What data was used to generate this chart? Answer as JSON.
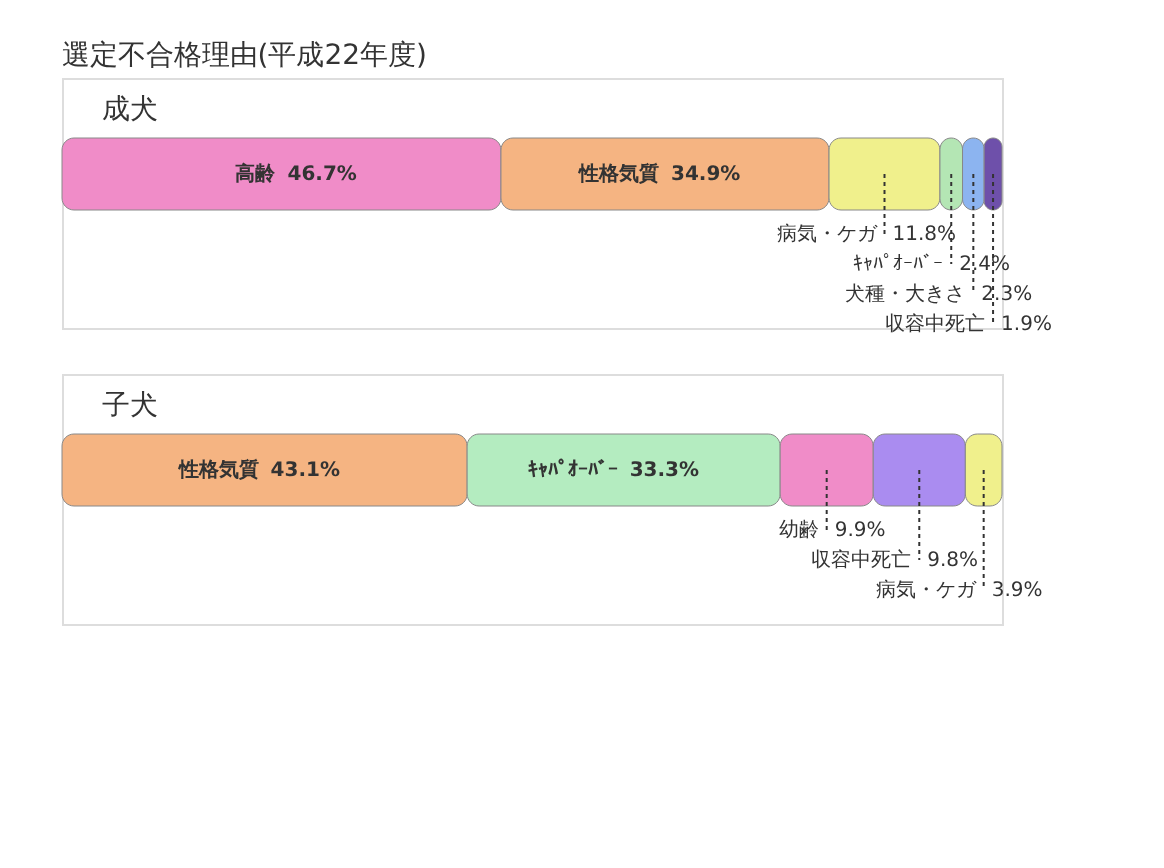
{
  "chart_data": [
    {
      "type": "bar",
      "orientation": "horizontal",
      "stacked": true,
      "title": "選定不合格理由(平成22年度)",
      "categories": [
        "成犬"
      ],
      "series": [
        {
          "name": "高齢",
          "color": "#f08cc8",
          "values": [
            46.7
          ],
          "value_labels": [
            "46.7%"
          ]
        },
        {
          "name": "性格気質",
          "color": "#f5b482",
          "values": [
            34.9
          ],
          "value_labels": [
            "34.9%"
          ]
        },
        {
          "name": "病気・ケガ",
          "color": "#f0f08c",
          "values": [
            11.8
          ],
          "value_labels": [
            "11.8%"
          ]
        },
        {
          "name": "ｷｬﾊﾟｵｰﾊﾞｰ",
          "color": "#b4e6b4",
          "values": [
            2.4
          ],
          "value_labels": [
            "2.4%"
          ]
        },
        {
          "name": "犬種・大きさ",
          "color": "#8cb4f0",
          "values": [
            2.3
          ],
          "value_labels": [
            "2.3%"
          ]
        },
        {
          "name": "収容中死亡",
          "color": "#6e50aa",
          "values": [
            1.9
          ],
          "value_labels": [
            "1.9%"
          ]
        }
      ]
    },
    {
      "type": "bar",
      "orientation": "horizontal",
      "stacked": true,
      "categories": [
        "子犬"
      ],
      "series": [
        {
          "name": "性格気質",
          "color": "#f5b482",
          "values": [
            43.1
          ],
          "value_labels": [
            "43.1%"
          ]
        },
        {
          "name": "ｷｬﾊﾟｵｰﾊﾞｰ",
          "color": "#b4ecc0",
          "values": [
            33.3
          ],
          "value_labels": [
            "33.3%"
          ]
        },
        {
          "name": "幼齢",
          "color": "#f08cc8",
          "values": [
            9.9
          ],
          "value_labels": [
            "9.9%"
          ]
        },
        {
          "name": "収容中死亡",
          "color": "#aa8cf0",
          "values": [
            9.8
          ],
          "value_labels": [
            "9.8%"
          ]
        },
        {
          "name": "病気・ケガ",
          "color": "#f0f08c",
          "values": [
            3.9
          ],
          "value_labels": [
            "3.9%"
          ]
        }
      ]
    }
  ]
}
